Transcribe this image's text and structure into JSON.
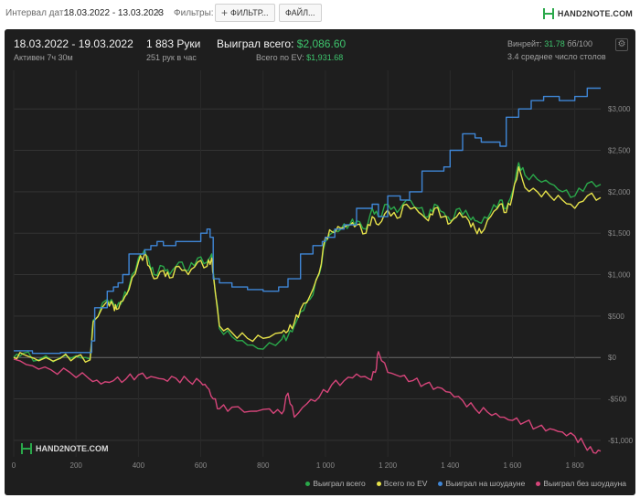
{
  "toolbar": {
    "interval_label": "Интервал дат:",
    "interval_value": "18.03.2022 - 13.03.2023",
    "filters_label": "Фильтры:",
    "filter_button": "ФИЛЬТР...",
    "file_button": "ФАЙЛ...",
    "logo_text": "HAND2NOTE.COM"
  },
  "stats": {
    "period": "18.03.2022 - 19.03.2022",
    "active": "Активен 7ч 30м",
    "hands": "1 883 Руки",
    "hands_per_hour": "251 рук в час",
    "won_total_label": "Выиграл всего:",
    "won_total_value": "$2,086.60",
    "ev_total_label": "Всего по EV:",
    "ev_total_value": "$1,931.68",
    "vpip_label": "Винрейт:",
    "vpip_value": "31.78",
    "vpip_unit": "бб/100",
    "tables": "3.4 среднее число столов"
  },
  "watermark": "HAND2NOTE.COM",
  "colors": {
    "won": "#2aa84a",
    "ev": "#e6e24a",
    "showdown": "#3f86d6",
    "nonshowdown": "#d6457a",
    "accent": "#3ec46d"
  },
  "chart_data": {
    "type": "line",
    "xlim": [
      0,
      1883
    ],
    "ylim": [
      -1200,
      3300
    ],
    "x_ticks": [
      0,
      200,
      400,
      600,
      800,
      1000,
      1200,
      1400,
      1600,
      1800
    ],
    "x_tick_labels": [
      "0",
      "200",
      "400",
      "600",
      "800",
      "1 000",
      "1 200",
      "1 400",
      "1 600",
      "1 800"
    ],
    "y_ticks": [
      -1000,
      -500,
      0,
      500,
      1000,
      1500,
      2000,
      2500,
      3000
    ],
    "y_tick_labels": [
      "-$1,000",
      "-$500",
      "$0",
      "$500",
      "$1,000",
      "$1,500",
      "$2,000",
      "$2,500",
      "$3,000"
    ],
    "grid": true,
    "legend_position": "bottom-right",
    "series": [
      {
        "name": "Выиграл всего",
        "color": "#2aa84a",
        "x": [
          0,
          30,
          80,
          150,
          200,
          245,
          255,
          300,
          320,
          330,
          350,
          370,
          400,
          420,
          435,
          450,
          480,
          500,
          530,
          560,
          590,
          620,
          635,
          640,
          660,
          700,
          750,
          800,
          860,
          880,
          900,
          920,
          950,
          980,
          1000,
          1020,
          1050,
          1080,
          1100,
          1130,
          1150,
          1170,
          1200,
          1230,
          1260,
          1300,
          1330,
          1350,
          1380,
          1400,
          1430,
          1460,
          1480,
          1500,
          1530,
          1560,
          1580,
          1600,
          1620,
          1640,
          1680,
          1720,
          1760,
          1800,
          1840,
          1883
        ],
        "y": [
          0,
          50,
          -30,
          0,
          20,
          -20,
          450,
          700,
          650,
          600,
          700,
          850,
          1200,
          1300,
          1150,
          1000,
          1100,
          1000,
          1150,
          1050,
          1200,
          1150,
          1250,
          1050,
          350,
          250,
          150,
          100,
          220,
          260,
          380,
          550,
          700,
          1000,
          1400,
          1500,
          1550,
          1620,
          1650,
          1550,
          1800,
          1700,
          1850,
          1750,
          1900,
          1800,
          1700,
          1850,
          1750,
          1650,
          1800,
          1700,
          1650,
          1620,
          1750,
          1900,
          1800,
          2000,
          2350,
          2200,
          2150,
          2100,
          2000,
          1950,
          2100,
          2090
        ]
      },
      {
        "name": "Всего по EV",
        "color": "#e6e24a",
        "x": [
          0,
          30,
          80,
          150,
          200,
          245,
          255,
          300,
          320,
          330,
          350,
          370,
          400,
          420,
          435,
          450,
          480,
          500,
          530,
          560,
          590,
          620,
          635,
          640,
          660,
          700,
          750,
          800,
          860,
          880,
          900,
          920,
          950,
          980,
          1000,
          1020,
          1050,
          1080,
          1100,
          1130,
          1150,
          1170,
          1200,
          1230,
          1260,
          1300,
          1330,
          1350,
          1380,
          1400,
          1430,
          1460,
          1480,
          1500,
          1530,
          1560,
          1580,
          1600,
          1620,
          1640,
          1680,
          1720,
          1760,
          1800,
          1840,
          1883
        ],
        "y": [
          0,
          40,
          -40,
          -10,
          10,
          -30,
          430,
          680,
          620,
          580,
          680,
          820,
          1150,
          1250,
          1100,
          950,
          1050,
          960,
          1100,
          1000,
          1150,
          1100,
          1200,
          1000,
          380,
          300,
          230,
          230,
          300,
          320,
          420,
          580,
          740,
          1020,
          1450,
          1520,
          1560,
          1600,
          1600,
          1500,
          1700,
          1600,
          1780,
          1680,
          1850,
          1750,
          1650,
          1800,
          1700,
          1620,
          1750,
          1650,
          1550,
          1500,
          1700,
          1850,
          1750,
          1950,
          2300,
          2050,
          2000,
          1950,
          1900,
          1800,
          1950,
          1930
        ]
      },
      {
        "name": "Выиграл на шоудауне",
        "color": "#3f86d6",
        "x": [
          0,
          60,
          150,
          230,
          250,
          260,
          300,
          320,
          335,
          350,
          370,
          420,
          440,
          460,
          480,
          520,
          560,
          600,
          620,
          630,
          640,
          660,
          700,
          750,
          800,
          850,
          880,
          920,
          960,
          990,
          1000,
          1030,
          1060,
          1100,
          1150,
          1170,
          1200,
          1240,
          1270,
          1310,
          1380,
          1400,
          1440,
          1480,
          1500,
          1560,
          1580,
          1620,
          1660,
          1700,
          1750,
          1800,
          1840,
          1883
        ],
        "y": [
          80,
          50,
          60,
          60,
          200,
          600,
          800,
          850,
          900,
          1000,
          1250,
          1300,
          1350,
          1400,
          1350,
          1400,
          1400,
          1500,
          1550,
          1450,
          950,
          900,
          850,
          820,
          800,
          850,
          950,
          1250,
          1350,
          1400,
          1450,
          1550,
          1600,
          1800,
          1850,
          1700,
          1950,
          1900,
          2000,
          2250,
          2300,
          2500,
          2700,
          2650,
          2600,
          2550,
          2900,
          3000,
          3100,
          3150,
          3100,
          3150,
          3250,
          3250
        ]
      },
      {
        "name": "Выиграл без шоудауна",
        "color": "#d6457a",
        "x": [
          0,
          60,
          120,
          180,
          240,
          280,
          320,
          360,
          400,
          440,
          480,
          520,
          560,
          600,
          620,
          640,
          660,
          700,
          760,
          820,
          860,
          880,
          900,
          940,
          980,
          1020,
          1060,
          1100,
          1140,
          1160,
          1170,
          1200,
          1240,
          1280,
          1320,
          1360,
          1400,
          1440,
          1480,
          1520,
          1560,
          1600,
          1640,
          1680,
          1720,
          1760,
          1800,
          1830,
          1860,
          1883
        ],
        "y": [
          -20,
          -100,
          -150,
          -180,
          -250,
          -320,
          -280,
          -260,
          -210,
          -230,
          -260,
          -250,
          -280,
          -300,
          -360,
          -500,
          -620,
          -600,
          -650,
          -620,
          -680,
          -430,
          -720,
          -560,
          -480,
          -330,
          -280,
          -200,
          -260,
          -180,
          70,
          -180,
          -230,
          -280,
          -320,
          -360,
          -420,
          -520,
          -620,
          -660,
          -720,
          -760,
          -780,
          -840,
          -860,
          -900,
          -950,
          -1050,
          -1150,
          -1130
        ]
      }
    ]
  }
}
